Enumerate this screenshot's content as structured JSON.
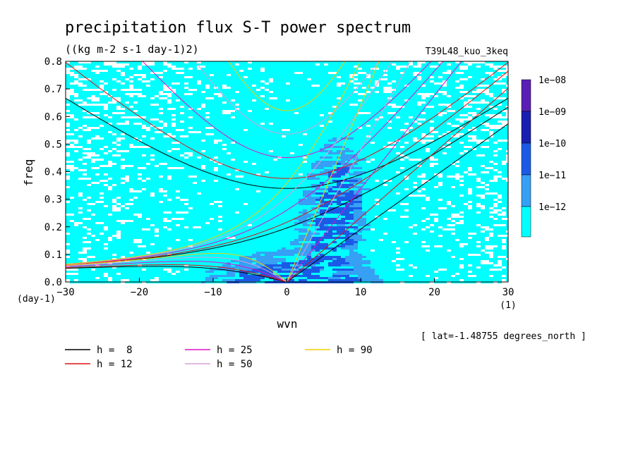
{
  "chart_data": {
    "type": "heatmap",
    "title": "precipitation flux S-T power spectrum",
    "subtitle": "((kg m-2 s-1 day-1)2)",
    "run_label": "T39L48_kuo_3keq",
    "xlabel": "wvn",
    "ylabel": "freq",
    "x_units": "(1)",
    "y_units": "(day-1)",
    "xlim": [
      -30,
      30
    ],
    "ylim": [
      0,
      0.8
    ],
    "xticks": [
      "-30",
      "-20",
      "-10",
      "0",
      "10",
      "20",
      "30"
    ],
    "yticks": [
      "0.0",
      "0.1",
      "0.2",
      "0.3",
      "0.4",
      "0.5",
      "0.6",
      "0.7",
      "0.8"
    ],
    "latitude_note": "[ lat=-1.48755 degrees_north ]",
    "colorbar": {
      "labels": [
        "1e-08",
        "1e-09",
        "1e-10",
        "1e-11",
        "1e-12"
      ],
      "colors": [
        "#5a1fb4",
        "#1a1fb0",
        "#1a5ae6",
        "#36a0f5",
        "#00ffff"
      ]
    },
    "legend": [
      {
        "label": "h =  8",
        "color": "#000000"
      },
      {
        "label": "h = 12",
        "color": "#e01010"
      },
      {
        "label": "h = 25",
        "color": "#e010c8"
      },
      {
        "label": "h = 50",
        "color": "#d8a0d8"
      },
      {
        "label": "h = 90",
        "color": "#f0d000"
      }
    ],
    "dispersion_curves": [
      {
        "h": 8,
        "color": "#000000"
      },
      {
        "h": 12,
        "color": "#e01010"
      },
      {
        "h": 25,
        "color": "#e010c8"
      },
      {
        "h": 50,
        "color": "#d8a0d8"
      },
      {
        "h": 90,
        "color": "#f0d000"
      }
    ]
  }
}
